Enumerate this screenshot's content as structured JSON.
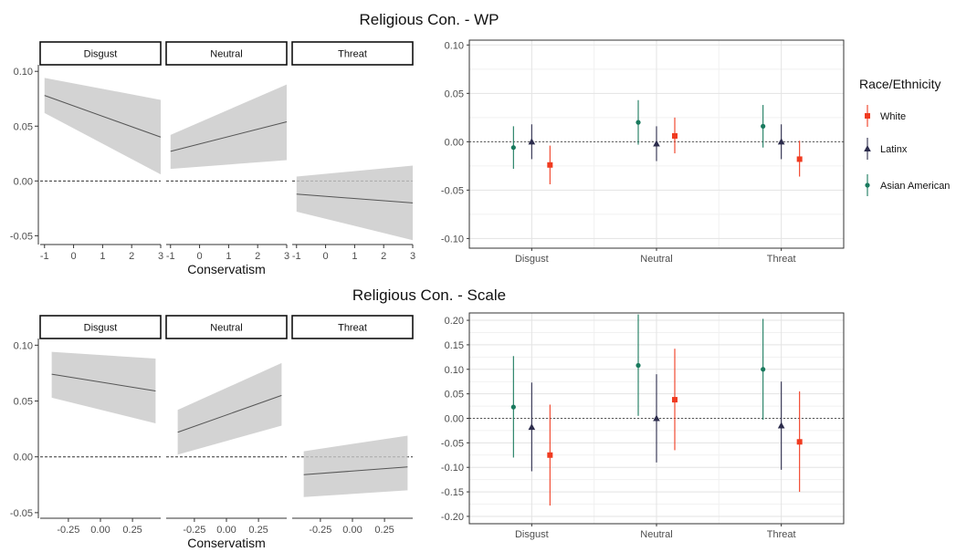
{
  "figure": {
    "legend_title": "Race/Ethnicity",
    "legend_items": [
      {
        "name": "White",
        "color": "#f03b20",
        "shape": "square"
      },
      {
        "name": "Latinx",
        "color": "#2c2c4c",
        "shape": "triangle"
      },
      {
        "name": "Asian American",
        "color": "#1a7a5e",
        "shape": "circle"
      }
    ]
  },
  "chart_data": [
    {
      "type": "line",
      "title": "Religious Con. - WP",
      "xlabel": "Conservatism",
      "ylabel": "",
      "panels": [
        "Disgust",
        "Neutral",
        "Threat"
      ],
      "xlim": [
        -1.15,
        3.0
      ],
      "ylim": [
        -0.058,
        0.106
      ],
      "xticks": [
        -1,
        0,
        1,
        2,
        3
      ],
      "xtick_labels": [
        "-1",
        "0",
        "1",
        "2",
        "3"
      ],
      "yticks": [
        -0.05,
        0.0,
        0.05,
        0.1
      ],
      "ytick_labels": [
        "-0.05",
        "0.00",
        "0.05",
        "0.10"
      ],
      "reference_line": 0,
      "series": [
        {
          "panel": "Disgust",
          "x": [
            -1,
            3
          ],
          "y": [
            0.078,
            0.04
          ],
          "lower": [
            0.062,
            0.006
          ],
          "upper": [
            0.094,
            0.074
          ]
        },
        {
          "panel": "Neutral",
          "x": [
            -1,
            3
          ],
          "y": [
            0.027,
            0.054
          ],
          "lower": [
            0.011,
            0.019
          ],
          "upper": [
            0.042,
            0.088
          ]
        },
        {
          "panel": "Threat",
          "x": [
            -1,
            3
          ],
          "y": [
            -0.012,
            -0.02
          ],
          "lower": [
            -0.028,
            -0.054
          ],
          "upper": [
            0.004,
            0.014
          ]
        }
      ]
    },
    {
      "type": "scatter",
      "title": "",
      "xlabel": "",
      "ylabel": "",
      "categories": [
        "Disgust",
        "Neutral",
        "Threat"
      ],
      "ylim": [
        -0.11,
        0.105
      ],
      "yticks": [
        -0.1,
        -0.05,
        0.0,
        0.05,
        0.1
      ],
      "ytick_labels": [
        "-0.10",
        "-0.05",
        "0.00",
        "0.05",
        "0.10"
      ],
      "reference_line": 0,
      "series": [
        {
          "name": "Asian American",
          "values": [
            -0.006,
            0.02,
            0.016
          ],
          "lower": [
            -0.028,
            -0.003,
            -0.006
          ],
          "upper": [
            0.016,
            0.043,
            0.038
          ]
        },
        {
          "name": "Latinx",
          "values": [
            0.0,
            -0.002,
            0.0
          ],
          "lower": [
            -0.018,
            -0.02,
            -0.018
          ],
          "upper": [
            0.018,
            0.016,
            0.018
          ]
        },
        {
          "name": "White",
          "values": [
            -0.024,
            0.006,
            -0.018
          ],
          "lower": [
            -0.044,
            -0.012,
            -0.036
          ],
          "upper": [
            -0.004,
            0.025,
            0.001
          ]
        }
      ]
    },
    {
      "type": "line",
      "title": "Religious Con. - Scale",
      "xlabel": "Conservatism",
      "ylabel": "",
      "panels": [
        "Disgust",
        "Neutral",
        "Threat"
      ],
      "xlim": [
        -0.47,
        0.47
      ],
      "ylim": [
        -0.055,
        0.106
      ],
      "xticks": [
        -0.25,
        0.0,
        0.25
      ],
      "xtick_labels": [
        "-0.25",
        "0.00",
        "0.25"
      ],
      "yticks": [
        -0.05,
        0.0,
        0.05,
        0.1
      ],
      "ytick_labels": [
        "-0.05",
        "0.00",
        "0.05",
        "0.10"
      ],
      "reference_line": 0,
      "series": [
        {
          "panel": "Disgust",
          "x": [
            -0.38,
            0.43
          ],
          "y": [
            0.074,
            0.059
          ],
          "lower": [
            0.053,
            0.03
          ],
          "upper": [
            0.094,
            0.088
          ]
        },
        {
          "panel": "Neutral",
          "x": [
            -0.38,
            0.43
          ],
          "y": [
            0.022,
            0.055
          ],
          "lower": [
            0.002,
            0.028
          ],
          "upper": [
            0.042,
            0.084
          ]
        },
        {
          "panel": "Threat",
          "x": [
            -0.38,
            0.43
          ],
          "y": [
            -0.016,
            -0.009
          ],
          "lower": [
            -0.036,
            -0.03
          ],
          "upper": [
            0.005,
            0.019
          ]
        }
      ]
    },
    {
      "type": "scatter",
      "title": "",
      "xlabel": "",
      "ylabel": "",
      "categories": [
        "Disgust",
        "Neutral",
        "Threat"
      ],
      "ylim": [
        -0.215,
        0.215
      ],
      "yticks": [
        -0.2,
        -0.15,
        -0.1,
        -0.05,
        0.0,
        0.05,
        0.1,
        0.15,
        0.2
      ],
      "ytick_labels": [
        "-0.20",
        "-0.15",
        "-0.10",
        "-0.05",
        "0.00",
        "0.05",
        "0.10",
        "0.15",
        "0.20"
      ],
      "reference_line": 0,
      "series": [
        {
          "name": "Asian American",
          "values": [
            0.023,
            0.108,
            0.1
          ],
          "lower": [
            -0.08,
            0.005,
            -0.003
          ],
          "upper": [
            0.127,
            0.212,
            0.203
          ]
        },
        {
          "name": "Latinx",
          "values": [
            -0.018,
            0.0,
            -0.015
          ],
          "lower": [
            -0.108,
            -0.09,
            -0.105
          ],
          "upper": [
            0.073,
            0.09,
            0.075
          ]
        },
        {
          "name": "White",
          "values": [
            -0.075,
            0.038,
            -0.048
          ],
          "lower": [
            -0.178,
            -0.065,
            -0.15
          ],
          "upper": [
            0.028,
            0.142,
            0.055
          ]
        }
      ]
    }
  ]
}
